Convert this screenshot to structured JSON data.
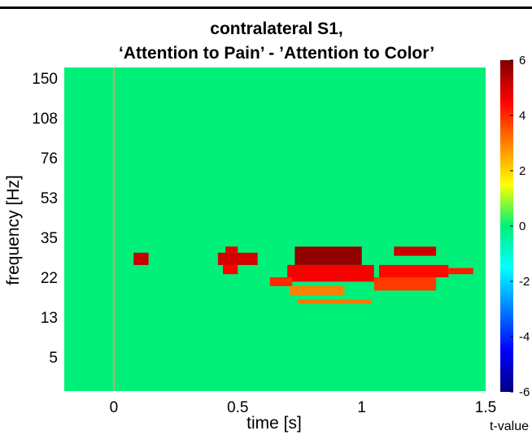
{
  "chart_data": {
    "type": "heatmap",
    "title": "contralateral S1,",
    "subtitle": "‘Attention to Pain’ - ’Attention to Color’",
    "xlabel": "time [s]",
    "ylabel": "frequency [Hz]",
    "xlim": [
      -0.2,
      1.5
    ],
    "x_ticks": [
      {
        "value": 0,
        "label": "0"
      },
      {
        "value": 0.5,
        "label": "0.5"
      },
      {
        "value": 1,
        "label": "1"
      },
      {
        "value": 1.5,
        "label": "1.5"
      }
    ],
    "y_ticks": [
      "150",
      "108",
      "76",
      "53",
      "35",
      "22",
      "13",
      "5"
    ],
    "colorbar": {
      "label": "t-value",
      "range": [
        -6,
        6
      ],
      "ticks": [
        6,
        4,
        2,
        0,
        -2,
        -4,
        -6
      ],
      "colormap": "jet"
    },
    "background_value": 0,
    "stimulus_marker_time": 0,
    "significant_clusters": [
      {
        "time": [
          0.08,
          0.14
        ],
        "freq": [
          26,
          30
        ],
        "t": 5.2
      },
      {
        "time": [
          0.42,
          0.58
        ],
        "freq": [
          26,
          30
        ],
        "t": 5.0
      },
      {
        "time": [
          0.45,
          0.5
        ],
        "freq": [
          30,
          32
        ],
        "t": 4.8
      },
      {
        "time": [
          0.44,
          0.5
        ],
        "freq": [
          23,
          26
        ],
        "t": 4.5
      },
      {
        "time": [
          0.73,
          1.0
        ],
        "freq": [
          26,
          32
        ],
        "t": 5.8
      },
      {
        "time": [
          0.7,
          1.05
        ],
        "freq": [
          21,
          26
        ],
        "t": 4.6
      },
      {
        "time": [
          0.63,
          0.72
        ],
        "freq": [
          20,
          22
        ],
        "t": 4.0
      },
      {
        "time": [
          0.71,
          0.93
        ],
        "freq": [
          18,
          20
        ],
        "t": 3.0
      },
      {
        "time": [
          0.74,
          1.04
        ],
        "freq": [
          16,
          17
        ],
        "t": 3.1
      },
      {
        "time": [
          1.13,
          1.3
        ],
        "freq": [
          29,
          32
        ],
        "t": 5.1
      },
      {
        "time": [
          1.07,
          1.35
        ],
        "freq": [
          22,
          26
        ],
        "t": 4.4
      },
      {
        "time": [
          1.05,
          1.3
        ],
        "freq": [
          19,
          22
        ],
        "t": 3.8
      },
      {
        "time": [
          1.35,
          1.45
        ],
        "freq": [
          23,
          25
        ],
        "t": 4.2
      }
    ]
  }
}
